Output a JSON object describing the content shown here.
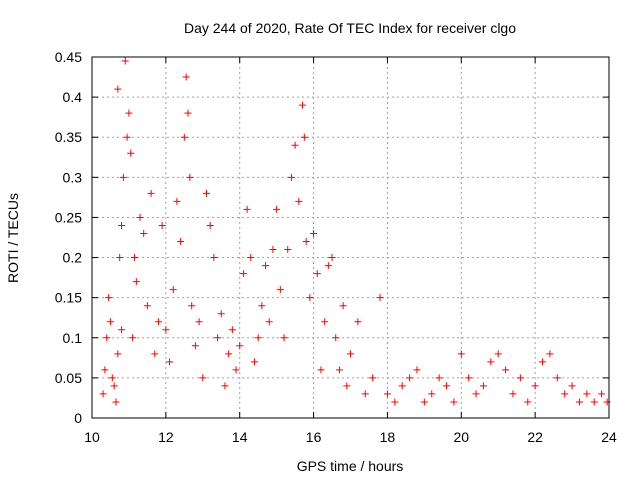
{
  "chart_data": {
    "type": "scatter",
    "title": "Day 244 of 2020, Rate Of TEC Index for receiver clgo",
    "xlabel": "GPS time / hours",
    "ylabel": "ROTI / TECUs",
    "xlim": [
      10,
      24
    ],
    "ylim": [
      0,
      0.45
    ],
    "x_ticks": [
      10,
      12,
      14,
      16,
      18,
      20,
      22,
      24
    ],
    "x_tick_labels": [
      "10",
      "12",
      "14",
      "16",
      "18",
      "20",
      "22",
      "24"
    ],
    "y_ticks": [
      0,
      0.05,
      0.1,
      0.15,
      0.2,
      0.25,
      0.3,
      0.35,
      0.4,
      0.45
    ],
    "y_tick_labels": [
      "0",
      "0.05",
      "0.1",
      "0.15",
      "0.2",
      "0.25",
      "0.3",
      "0.35",
      "0.4",
      "0.45"
    ],
    "grid": true,
    "marker": "plus",
    "color": "#ff0000",
    "series": [
      {
        "points": [
          [
            10.3,
            0.03
          ],
          [
            10.35,
            0.06
          ],
          [
            10.4,
            0.1
          ],
          [
            10.45,
            0.15
          ],
          [
            10.5,
            0.12
          ],
          [
            10.55,
            0.05
          ],
          [
            10.6,
            0.04
          ],
          [
            10.65,
            0.02
          ],
          [
            10.7,
            0.08
          ],
          [
            10.75,
            0.2
          ],
          [
            10.8,
            0.11
          ],
          [
            10.85,
            0.3
          ],
          [
            10.9,
            0.445
          ],
          [
            10.95,
            0.35
          ],
          [
            10.7,
            0.41
          ],
          [
            10.8,
            0.24
          ],
          [
            11.0,
            0.38
          ],
          [
            11.05,
            0.33
          ],
          [
            11.1,
            0.1
          ],
          [
            11.15,
            0.2
          ],
          [
            11.2,
            0.17
          ],
          [
            11.3,
            0.25
          ],
          [
            11.4,
            0.23
          ],
          [
            11.5,
            0.14
          ],
          [
            11.6,
            0.28
          ],
          [
            11.7,
            0.08
          ],
          [
            11.8,
            0.12
          ],
          [
            11.9,
            0.24
          ],
          [
            12.0,
            0.11
          ],
          [
            12.1,
            0.07
          ],
          [
            12.2,
            0.16
          ],
          [
            12.3,
            0.27
          ],
          [
            12.4,
            0.22
          ],
          [
            12.5,
            0.35
          ],
          [
            12.55,
            0.425
          ],
          [
            12.6,
            0.38
          ],
          [
            12.65,
            0.3
          ],
          [
            12.7,
            0.14
          ],
          [
            12.8,
            0.09
          ],
          [
            12.9,
            0.12
          ],
          [
            13.0,
            0.05
          ],
          [
            13.1,
            0.28
          ],
          [
            13.2,
            0.24
          ],
          [
            13.3,
            0.2
          ],
          [
            13.4,
            0.1
          ],
          [
            13.5,
            0.13
          ],
          [
            13.6,
            0.04
          ],
          [
            13.7,
            0.08
          ],
          [
            13.8,
            0.11
          ],
          [
            13.9,
            0.06
          ],
          [
            14.0,
            0.09
          ],
          [
            14.1,
            0.18
          ],
          [
            14.2,
            0.26
          ],
          [
            14.3,
            0.2
          ],
          [
            14.4,
            0.07
          ],
          [
            14.5,
            0.1
          ],
          [
            14.6,
            0.14
          ],
          [
            14.7,
            0.19
          ],
          [
            14.8,
            0.12
          ],
          [
            14.9,
            0.21
          ],
          [
            15.0,
            0.26
          ],
          [
            15.1,
            0.16
          ],
          [
            15.2,
            0.1
          ],
          [
            15.3,
            0.21
          ],
          [
            15.4,
            0.3
          ],
          [
            15.5,
            0.34
          ],
          [
            15.6,
            0.27
          ],
          [
            15.7,
            0.39
          ],
          [
            15.75,
            0.35
          ],
          [
            15.8,
            0.22
          ],
          [
            15.9,
            0.15
          ],
          [
            16.0,
            0.23
          ],
          [
            16.1,
            0.18
          ],
          [
            16.2,
            0.06
          ],
          [
            16.3,
            0.12
          ],
          [
            16.4,
            0.19
          ],
          [
            16.5,
            0.2
          ],
          [
            16.6,
            0.1
          ],
          [
            16.7,
            0.06
          ],
          [
            16.8,
            0.14
          ],
          [
            16.9,
            0.04
          ],
          [
            17.0,
            0.08
          ],
          [
            17.2,
            0.12
          ],
          [
            17.4,
            0.03
          ],
          [
            17.6,
            0.05
          ],
          [
            17.8,
            0.15
          ],
          [
            18.0,
            0.03
          ],
          [
            18.2,
            0.02
          ],
          [
            18.4,
            0.04
          ],
          [
            18.6,
            0.05
          ],
          [
            18.8,
            0.06
          ],
          [
            19.0,
            0.02
          ],
          [
            19.2,
            0.03
          ],
          [
            19.4,
            0.05
          ],
          [
            19.6,
            0.04
          ],
          [
            19.8,
            0.02
          ],
          [
            20.0,
            0.08
          ],
          [
            20.2,
            0.05
          ],
          [
            20.4,
            0.03
          ],
          [
            20.6,
            0.04
          ],
          [
            20.8,
            0.07
          ],
          [
            21.0,
            0.08
          ],
          [
            21.2,
            0.06
          ],
          [
            21.4,
            0.03
          ],
          [
            21.6,
            0.05
          ],
          [
            21.8,
            0.02
          ],
          [
            22.0,
            0.04
          ],
          [
            22.2,
            0.07
          ],
          [
            22.4,
            0.08
          ],
          [
            22.6,
            0.05
          ],
          [
            22.8,
            0.03
          ],
          [
            23.0,
            0.04
          ],
          [
            23.2,
            0.02
          ],
          [
            23.4,
            0.03
          ],
          [
            23.6,
            0.02
          ],
          [
            23.8,
            0.03
          ],
          [
            23.95,
            0.02
          ]
        ]
      }
    ]
  }
}
